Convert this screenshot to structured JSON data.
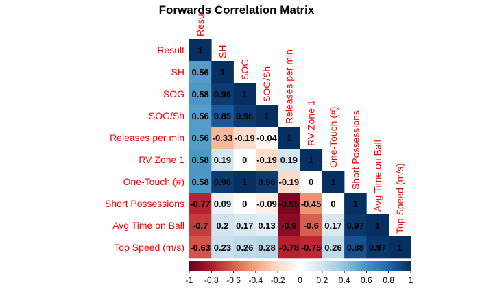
{
  "chart_data": {
    "type": "heatmap",
    "title": "Forwards Correlation Matrix",
    "variables": [
      "Result",
      "SH",
      "SOG",
      "SOG/Sh",
      "Releases per min",
      "RV Zone 1",
      "One-Touch (#)",
      "Short Possessions",
      "Avg Time on Ball",
      "Top Speed (m/s)"
    ],
    "top_labels": [
      "Resu",
      "SH",
      "SOG",
      "SOG/Sh",
      "Releases per min",
      "RV Zone 1",
      "One-Touch (#)",
      "Short Possessions",
      "Avg Time on Ball",
      "Top Speed (m/s)"
    ],
    "matrix_lower": [
      [
        1
      ],
      [
        0.56,
        1
      ],
      [
        0.58,
        0.96,
        1
      ],
      [
        0.56,
        0.85,
        0.96,
        1
      ],
      [
        0.56,
        -0.33,
        -0.19,
        -0.04,
        1
      ],
      [
        0.58,
        0.19,
        0,
        -0.19,
        0.19,
        1
      ],
      [
        0.58,
        0.96,
        1,
        0.96,
        -0.19,
        0,
        1
      ],
      [
        -0.77,
        0.09,
        0,
        -0.09,
        -0.95,
        -0.45,
        0,
        1
      ],
      [
        -0.7,
        0.2,
        0.17,
        0.13,
        -0.9,
        -0.6,
        0.17,
        0.97,
        1
      ],
      [
        -0.63,
        0.23,
        0.26,
        0.28,
        -0.78,
        -0.75,
        0.26,
        0.88,
        0.97,
        1
      ]
    ],
    "cell_labels": [
      [
        "1"
      ],
      [
        "0.56",
        "1"
      ],
      [
        "0.58",
        "0.96",
        "1"
      ],
      [
        "0.56",
        "0.85",
        "0.96",
        "1"
      ],
      [
        "0.56",
        "-0.33",
        "-0.19",
        "-0.04",
        "1"
      ],
      [
        "0.58",
        "0.19",
        "0",
        "-0.19",
        "0.19",
        "1"
      ],
      [
        "0.58",
        "0.96",
        "1",
        "0.96",
        "-0.19",
        "0",
        "1"
      ],
      [
        "-0.77",
        "0.09",
        "0",
        "-0.09",
        "-0.95",
        "-0.45",
        "0",
        "1"
      ],
      [
        "-0.7",
        "0.2",
        "0.17",
        "0.13",
        "-0.9",
        "-0.6",
        "0.17",
        "0.97",
        "1"
      ],
      [
        "-0.63",
        "0.23",
        "0.26",
        "0.28",
        "-0.78",
        "-0.75",
        "0.26",
        "0.88",
        "0.97",
        "1"
      ]
    ],
    "colorbar": {
      "range": [
        -1,
        1
      ],
      "ticks": [
        "-1",
        "-0.8",
        "-0.6",
        "-0.4",
        "-0.2",
        "0",
        "0.2",
        "0.4",
        "0.6",
        "0.8",
        "1"
      ]
    },
    "colors": {
      "label": "#ff0000",
      "title": "#000000",
      "cell_text": "#000000",
      "scale": [
        "#67001f",
        "#b2182b",
        "#d6604d",
        "#f4a582",
        "#fddbc7",
        "#ffffff",
        "#d1e5f0",
        "#92c5de",
        "#4393c3",
        "#2166ac",
        "#053061"
      ]
    }
  }
}
